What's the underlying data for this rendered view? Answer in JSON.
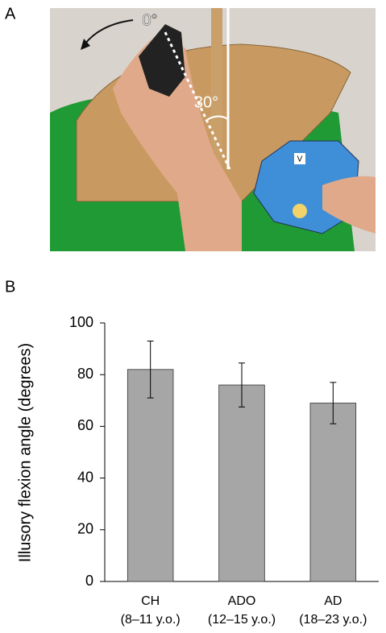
{
  "panel_a": {
    "label": "A",
    "annotations": [
      "0°",
      "30°"
    ],
    "device_label": "V"
  },
  "chart_data": {
    "type": "bar",
    "panel_label": "B",
    "y_label": "Illusory flexion angle (degrees)",
    "categories": [
      "CH",
      "ADO",
      "AD"
    ],
    "category_sublabels": [
      "(8–11 y.o.)",
      "(12–15 y.o.)",
      "(18–23 y.o.)"
    ],
    "values": [
      82,
      76,
      69
    ],
    "errors": [
      11,
      8.5,
      8
    ],
    "color": "#a6a6a6",
    "ylim": [
      0,
      100
    ],
    "yticks": [
      0,
      20,
      40,
      60,
      80,
      100
    ]
  }
}
